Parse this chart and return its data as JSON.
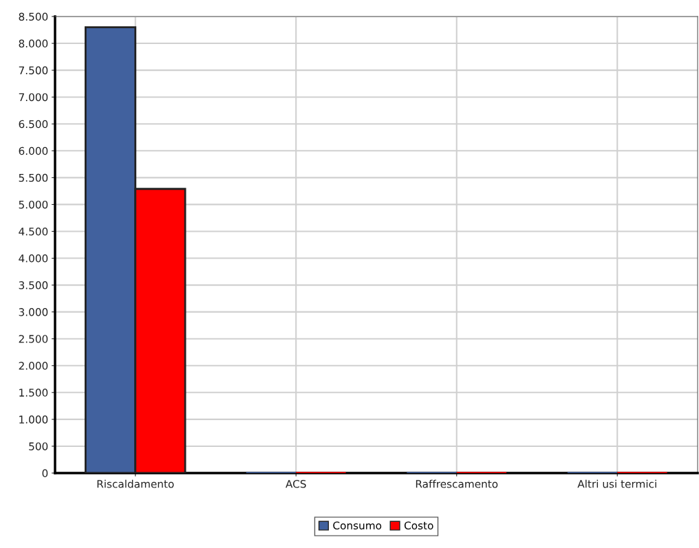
{
  "chart_data": {
    "type": "bar",
    "categories": [
      "Riscaldamento",
      "ACS",
      "Raffrescamento",
      "Altri usi termici"
    ],
    "series": [
      {
        "name": "Consumo",
        "color": "#41619e",
        "values": [
          8300,
          0,
          0,
          0
        ]
      },
      {
        "name": "Costo",
        "color": "#ff0000",
        "values": [
          5290,
          0,
          0,
          0
        ]
      }
    ],
    "ylim": [
      0,
      8500
    ],
    "yticks": [
      0,
      500,
      {
        "value": 1000,
        "label": "1.000"
      },
      {
        "value": 1500,
        "label": "1.500"
      },
      {
        "value": 2000,
        "label": "2.000"
      },
      {
        "value": 2500,
        "label": "2.500"
      },
      {
        "value": 3000,
        "label": "3.000"
      },
      {
        "value": 3500,
        "label": "3.500"
      },
      {
        "value": 4000,
        "label": "4.000"
      },
      {
        "value": 4500,
        "label": "4.500"
      },
      {
        "value": 5000,
        "label": "5.000"
      },
      {
        "value": 5500,
        "label": "5.500"
      },
      {
        "value": 6000,
        "label": "6.000"
      },
      {
        "value": 6500,
        "label": "6.500"
      },
      {
        "value": 7000,
        "label": "7.000"
      },
      {
        "value": 7500,
        "label": "7.500"
      },
      {
        "value": 8000,
        "label": "8.000"
      },
      {
        "value": 8500,
        "label": "8.500"
      }
    ],
    "grid": true,
    "legend": "bottom"
  }
}
